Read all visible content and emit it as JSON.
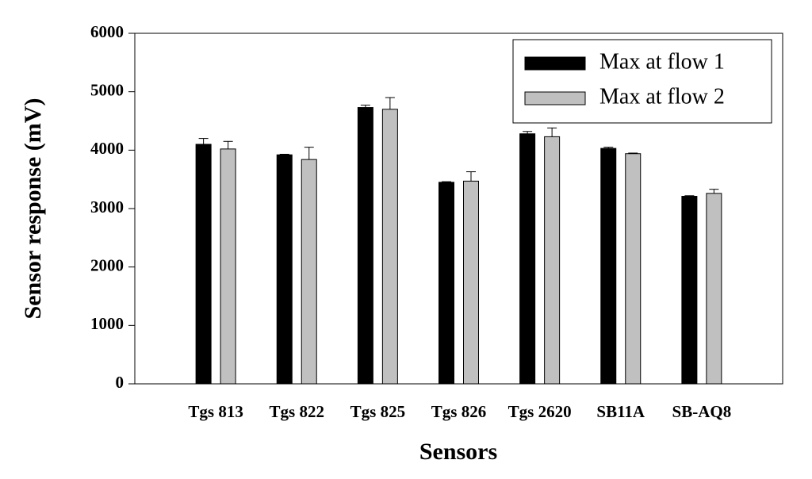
{
  "chart_data": {
    "type": "bar",
    "x_label": "Sensors",
    "y_label": "Sensor response (mV)",
    "categories": [
      "Tgs 813",
      "Tgs 822",
      "Tgs 825",
      "Tgs 826",
      "Tgs 2620",
      "SB11A",
      "SB-AQ8"
    ],
    "series": [
      {
        "name": "Max at flow 1",
        "color": "#000000",
        "values": [
          4100,
          3920,
          4730,
          3450,
          4280,
          4030,
          3210
        ],
        "errors": [
          100,
          10,
          40,
          10,
          40,
          20,
          10
        ]
      },
      {
        "name": "Max at flow 2",
        "color": "#c0c0c0",
        "values": [
          4020,
          3840,
          4700,
          3470,
          4230,
          3940,
          3260
        ],
        "errors": [
          130,
          210,
          200,
          160,
          150,
          10,
          70
        ]
      }
    ],
    "ylim": [
      0,
      6000
    ],
    "yticks": [
      0,
      1000,
      2000,
      3000,
      4000,
      5000,
      6000
    ],
    "legend": "upper-right"
  }
}
